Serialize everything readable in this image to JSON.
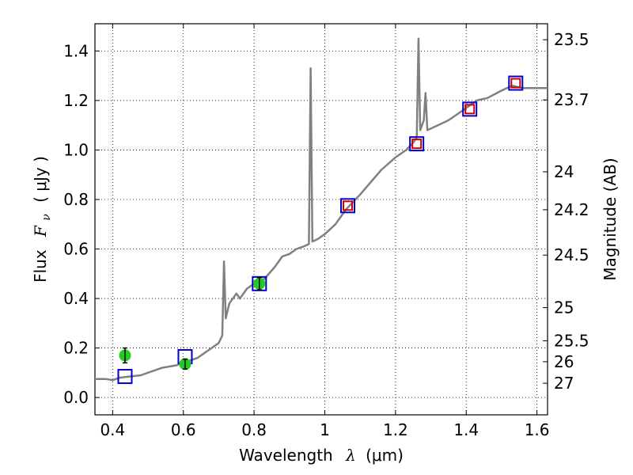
{
  "chart_data": {
    "type": "line",
    "x_axis": {
      "label_prefix": "Wavelength",
      "label_symbol": "λ",
      "label_units": "(μm)",
      "range": [
        0.35,
        1.63
      ],
      "ticks": [
        0.4,
        0.6,
        0.8,
        1.0,
        1.2,
        1.4,
        1.6
      ],
      "tick_labels": [
        "0.4",
        "0.6",
        "0.8",
        "1",
        "1.2",
        "1.4",
        "1.6"
      ]
    },
    "y_axis": {
      "label_prefix": "Flux",
      "label_symbol": "F",
      "label_subscript": "ν",
      "label_units": "( μJy )",
      "range": [
        -0.07,
        1.51
      ],
      "ticks": [
        0.0,
        0.2,
        0.4,
        0.6,
        0.8,
        1.0,
        1.2,
        1.4
      ],
      "tick_labels": [
        "0.0",
        "0.2",
        "0.4",
        "0.6",
        "0.8",
        "1.0",
        "1.2",
        "1.4"
      ]
    },
    "y2_axis": {
      "label": "Magnitude (AB)",
      "ticks": [
        {
          "value": 23.5,
          "label": "23.5"
        },
        {
          "value": 23.7,
          "label": "23.7"
        },
        {
          "value": 24,
          "label": "24"
        },
        {
          "value": 24.2,
          "label": "24.2"
        },
        {
          "value": 24.5,
          "label": "24.5"
        },
        {
          "value": 25,
          "label": "25"
        },
        {
          "value": 25.5,
          "label": "25.5"
        },
        {
          "value": 26,
          "label": "26"
        },
        {
          "value": 27,
          "label": "27"
        }
      ]
    },
    "grid": true,
    "series": [
      {
        "name": "model spectrum",
        "kind": "line",
        "color": "#808080",
        "points": [
          [
            0.35,
            0.075
          ],
          [
            0.38,
            0.075
          ],
          [
            0.4,
            0.07
          ],
          [
            0.42,
            0.08
          ],
          [
            0.45,
            0.085
          ],
          [
            0.48,
            0.09
          ],
          [
            0.5,
            0.1
          ],
          [
            0.52,
            0.11
          ],
          [
            0.54,
            0.12
          ],
          [
            0.56,
            0.125
          ],
          [
            0.58,
            0.13
          ],
          [
            0.6,
            0.14
          ],
          [
            0.62,
            0.15
          ],
          [
            0.64,
            0.16
          ],
          [
            0.66,
            0.18
          ],
          [
            0.68,
            0.2
          ],
          [
            0.7,
            0.22
          ],
          [
            0.71,
            0.25
          ],
          [
            0.715,
            0.55
          ],
          [
            0.72,
            0.32
          ],
          [
            0.73,
            0.38
          ],
          [
            0.75,
            0.42
          ],
          [
            0.76,
            0.4
          ],
          [
            0.78,
            0.44
          ],
          [
            0.8,
            0.46
          ],
          [
            0.83,
            0.48
          ],
          [
            0.86,
            0.53
          ],
          [
            0.88,
            0.57
          ],
          [
            0.9,
            0.58
          ],
          [
            0.92,
            0.6
          ],
          [
            0.94,
            0.61
          ],
          [
            0.955,
            0.62
          ],
          [
            0.96,
            1.33
          ],
          [
            0.965,
            0.63
          ],
          [
            0.98,
            0.64
          ],
          [
            1.0,
            0.66
          ],
          [
            1.03,
            0.7
          ],
          [
            1.06,
            0.76
          ],
          [
            1.1,
            0.82
          ],
          [
            1.13,
            0.87
          ],
          [
            1.16,
            0.92
          ],
          [
            1.2,
            0.97
          ],
          [
            1.23,
            1.0
          ],
          [
            1.25,
            1.03
          ],
          [
            1.26,
            1.05
          ],
          [
            1.265,
            1.45
          ],
          [
            1.27,
            1.08
          ],
          [
            1.28,
            1.12
          ],
          [
            1.285,
            1.23
          ],
          [
            1.29,
            1.08
          ],
          [
            1.32,
            1.1
          ],
          [
            1.35,
            1.12
          ],
          [
            1.38,
            1.15
          ],
          [
            1.4,
            1.17
          ],
          [
            1.43,
            1.2
          ],
          [
            1.46,
            1.21
          ],
          [
            1.5,
            1.24
          ],
          [
            1.53,
            1.26
          ],
          [
            1.56,
            1.25
          ],
          [
            1.6,
            1.25
          ],
          [
            1.63,
            1.25
          ]
        ]
      },
      {
        "name": "synthetic photometry (blue squares)",
        "kind": "marker",
        "marker": "square",
        "color": "#0000cc",
        "points": [
          [
            0.435,
            0.085
          ],
          [
            0.605,
            0.165
          ],
          [
            0.815,
            0.46
          ],
          [
            1.065,
            0.775
          ],
          [
            1.26,
            1.025
          ],
          [
            1.41,
            1.165
          ],
          [
            1.54,
            1.27
          ]
        ]
      },
      {
        "name": "observed photometry (red squares)",
        "kind": "marker",
        "marker": "square",
        "color": "#cc0000",
        "points": [
          [
            1.065,
            0.775
          ],
          [
            1.26,
            1.025
          ],
          [
            1.41,
            1.165
          ],
          [
            1.54,
            1.27
          ]
        ]
      },
      {
        "name": "observed photometry (green circles)",
        "kind": "marker",
        "marker": "circle",
        "color": "#22cc22",
        "points": [
          {
            "x": 0.435,
            "y": 0.17,
            "err": 0.03
          },
          {
            "x": 0.605,
            "y": 0.135,
            "err": 0.02
          },
          {
            "x": 0.815,
            "y": 0.46,
            "err": 0.025
          }
        ]
      }
    ]
  }
}
